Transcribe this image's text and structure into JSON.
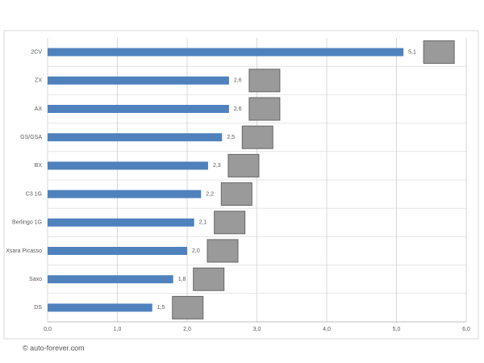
{
  "chart_data": {
    "type": "barh",
    "categories": [
      "2CV",
      "ZX",
      "AX",
      "GS/GSA",
      "BX",
      "C3 1G",
      "Berlingo 1G",
      "Xsara Picasso",
      "Saxo",
      "DS"
    ],
    "values": [
      5.1,
      2.6,
      2.6,
      2.5,
      2.3,
      2.2,
      2.1,
      2.0,
      1.8,
      1.5
    ],
    "value_labels": [
      "5,1",
      "2,6",
      "2,6",
      "2,5",
      "2,3",
      "2,2",
      "2,1",
      "2,0",
      "1,8",
      "1,5"
    ],
    "color": "#4f81bd",
    "xlim": [
      0,
      6
    ],
    "xticks": [
      {
        "value": 0,
        "label": "0,0"
      },
      {
        "value": 1,
        "label": "1,0"
      },
      {
        "value": 2,
        "label": "2,0"
      },
      {
        "value": 3,
        "label": "3,0"
      },
      {
        "value": 4,
        "label": "4,0"
      },
      {
        "value": 5,
        "label": "5,0"
      },
      {
        "value": 6,
        "label": "6,0"
      }
    ],
    "grid": true,
    "source": "© auto-forever.com"
  }
}
